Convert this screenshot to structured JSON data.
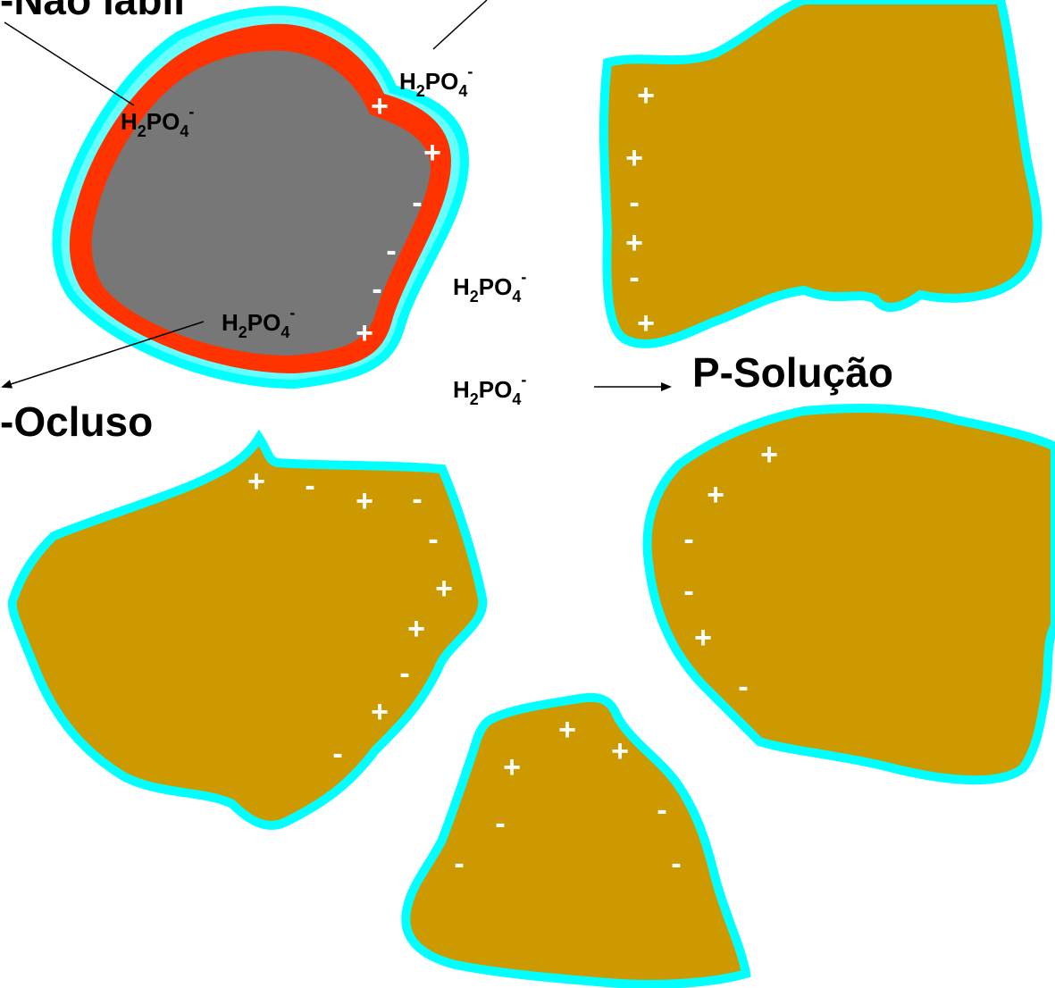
{
  "labels": {
    "nao_labil": "-Não lábil",
    "ocluso": "-Ocluso",
    "solucao": "P-Solução"
  },
  "ion": {
    "h": "H",
    "h_sub": "2",
    "po": "PO",
    "po_sub": "4",
    "charge": "-"
  },
  "charge_symbols": {
    "plus": "+",
    "minus": "-"
  },
  "colors": {
    "particle_fill": "#cc9900",
    "particle_outline": "#00ffff",
    "occluded_core": "#777777",
    "occluded_coating": "#ff3300",
    "charge_text": "#ffffff",
    "background": "#ffffff"
  }
}
